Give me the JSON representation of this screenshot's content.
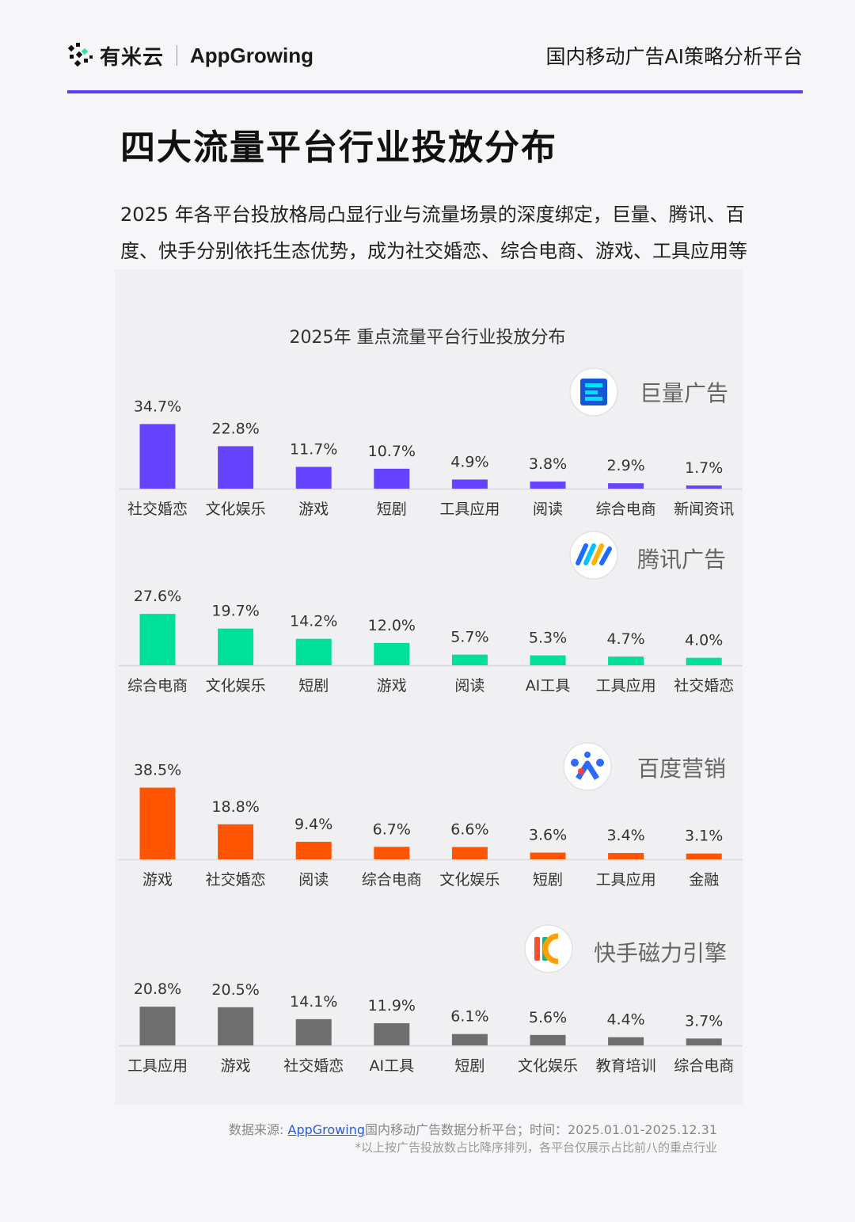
{
  "header": {
    "logo_cn": "有米云",
    "logo_en": "AppGrowing",
    "tagline": "国内移动广告AI策略分析平台"
  },
  "page_title": "四大流量平台行业投放分布",
  "intro": "2025 年各平台投放格局凸显行业与流量场景的深度绑定，巨量、腾讯、百度、快手分别依托生态优势，成为社交婚恋、综合电商、游戏、工具应用等行业的核心投放阵地。",
  "chart_title": "2025年 重点流量平台行业投放分布",
  "chart_data": [
    {
      "type": "bar",
      "platform": "巨量广告",
      "icon": "juliang-logo-icon",
      "color": "#6644ff",
      "categories": [
        "社交婚恋",
        "文化娱乐",
        "游戏",
        "短剧",
        "工具应用",
        "阅读",
        "综合电商",
        "新闻资讯"
      ],
      "values": [
        34.7,
        22.8,
        11.7,
        10.7,
        4.9,
        3.8,
        2.9,
        1.7
      ],
      "labels": [
        "34.7%",
        "22.8%",
        "11.7%",
        "10.7%",
        "4.9%",
        "3.8%",
        "2.9%",
        "1.7%"
      ]
    },
    {
      "type": "bar",
      "platform": "腾讯广告",
      "icon": "tencent-ads-logo-icon",
      "color": "#00e096",
      "categories": [
        "综合电商",
        "文化娱乐",
        "短剧",
        "游戏",
        "阅读",
        "AI工具",
        "工具应用",
        "社交婚恋"
      ],
      "values": [
        27.6,
        19.7,
        14.2,
        12.0,
        5.7,
        5.3,
        4.7,
        4.0
      ],
      "labels": [
        "27.6%",
        "19.7%",
        "14.2%",
        "12.0%",
        "5.7%",
        "5.3%",
        "4.7%",
        "4.0%"
      ]
    },
    {
      "type": "bar",
      "platform": "百度营销",
      "icon": "baidu-marketing-logo-icon",
      "color": "#ff5500",
      "categories": [
        "游戏",
        "社交婚恋",
        "阅读",
        "综合电商",
        "文化娱乐",
        "短剧",
        "工具应用",
        "金融"
      ],
      "values": [
        38.5,
        18.8,
        9.4,
        6.7,
        6.6,
        3.6,
        3.4,
        3.1
      ],
      "labels": [
        "38.5%",
        "18.8%",
        "9.4%",
        "6.7%",
        "6.6%",
        "3.6%",
        "3.4%",
        "3.1%"
      ]
    },
    {
      "type": "bar",
      "platform": "快手磁力引擎",
      "icon": "kuaishou-magnetic-logo-icon",
      "color": "#6e6e6e",
      "categories": [
        "工具应用",
        "游戏",
        "社交婚恋",
        "AI工具",
        "短剧",
        "文化娱乐",
        "教育培训",
        "综合电商"
      ],
      "values": [
        20.8,
        20.5,
        14.1,
        11.9,
        6.1,
        5.6,
        4.4,
        3.7
      ],
      "labels": [
        "20.8%",
        "20.5%",
        "14.1%",
        "11.9%",
        "6.1%",
        "5.6%",
        "4.4%",
        "3.7%"
      ]
    }
  ],
  "footer": {
    "source_prefix": "数据来源: ",
    "source_link": "AppGrowing",
    "source_suffix": "国内移动广告数据分析平台；时间：2025.01.01-2025.12.31",
    "note": "*以上按广告投放数占比降序排列，各平台仅展示占比前八的重点行业"
  }
}
